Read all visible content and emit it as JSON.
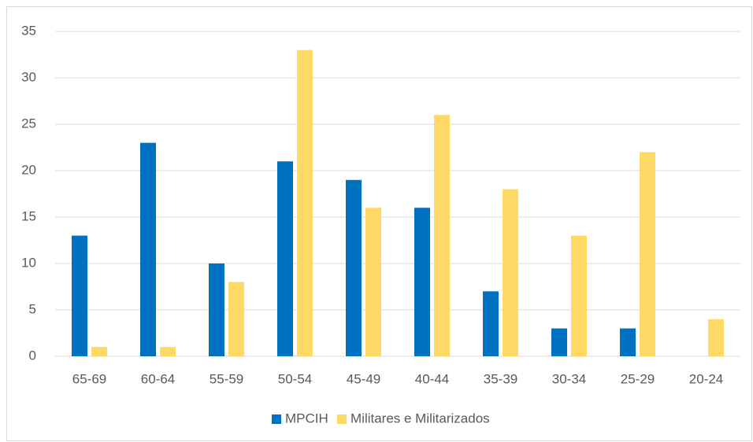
{
  "chart_data": {
    "type": "bar",
    "categories": [
      "65-69",
      "60-64",
      "55-59",
      "50-54",
      "45-49",
      "40-44",
      "35-39",
      "30-34",
      "25-29",
      "20-24"
    ],
    "series": [
      {
        "name": "MPCIH",
        "color": "#0070c0",
        "values": [
          13,
          23,
          10,
          21,
          19,
          16,
          7,
          3,
          3,
          0
        ]
      },
      {
        "name": "Militares e Militarizados",
        "color": "#ffd966",
        "values": [
          1,
          1,
          8,
          33,
          16,
          26,
          18,
          13,
          22,
          4
        ]
      }
    ],
    "ylim": [
      0,
      35
    ],
    "yticks": [
      0,
      5,
      10,
      15,
      20,
      25,
      30,
      35
    ],
    "grid": true,
    "legend": "bottom"
  }
}
